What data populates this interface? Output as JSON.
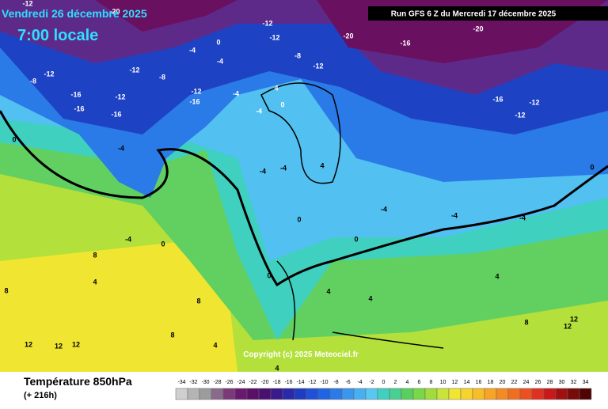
{
  "header": {
    "valid_date": "Vendredi 26 décembre 2025",
    "local_time": "7:00 locale",
    "run": "Run GFS 6 Z du Mercredi 17 décembre 2025",
    "copyright": "Copyright (c) 2025 Meteociel.fr"
  },
  "footer": {
    "title": "Température 850hPa",
    "lead": "(+ 216h)"
  },
  "scale": {
    "values": [
      -34,
      -32,
      -30,
      -28,
      -26,
      -24,
      -22,
      -20,
      -18,
      -16,
      -14,
      -12,
      -10,
      -8,
      -6,
      -4,
      -2,
      0,
      2,
      4,
      6,
      8,
      10,
      12,
      14,
      16,
      18,
      20,
      22,
      24,
      26,
      28,
      30,
      32,
      34
    ],
    "colors": [
      "#cfcfcf",
      "#b4b4b4",
      "#9c9c9c",
      "#8a6a8a",
      "#7a3a7a",
      "#6a1a6e",
      "#5a1068",
      "#4a1070",
      "#3a1a8a",
      "#2a2aa8",
      "#1e3cc0",
      "#1e50d8",
      "#2064e6",
      "#2a7ae8",
      "#3a96ee",
      "#48b0f2",
      "#58c8f2",
      "#40d0c0",
      "#48d090",
      "#58d060",
      "#78d848",
      "#a0dc3c",
      "#c8e43a",
      "#f0e632",
      "#f6d42c",
      "#f8be28",
      "#f8a426",
      "#f48a22",
      "#f06e20",
      "#ec5020",
      "#e03020",
      "#c81818",
      "#a01010",
      "#780a0a",
      "#500404"
    ]
  },
  "map": {
    "labels": [
      "-12",
      "-20",
      "-12",
      "-12",
      "-20",
      "-16",
      "-20",
      "-12",
      "-8",
      "-12",
      "-8",
      "-4",
      "0",
      "-4",
      "-8",
      "-12",
      "-16",
      "-12",
      "-16",
      "-16",
      "-12",
      "-16",
      "-4",
      "4",
      "0",
      "-4",
      "-16",
      "-12",
      "-12",
      "-4",
      "0",
      "-4",
      "-4",
      "4",
      "-4",
      "-4",
      "-4",
      "0",
      "0",
      "0",
      "-4",
      "0",
      "8",
      "4",
      "8",
      "0",
      "4",
      "4",
      "4",
      "8",
      "8",
      "12",
      "12",
      "12",
      "4",
      "12",
      "12",
      "8",
      "4"
    ]
  }
}
